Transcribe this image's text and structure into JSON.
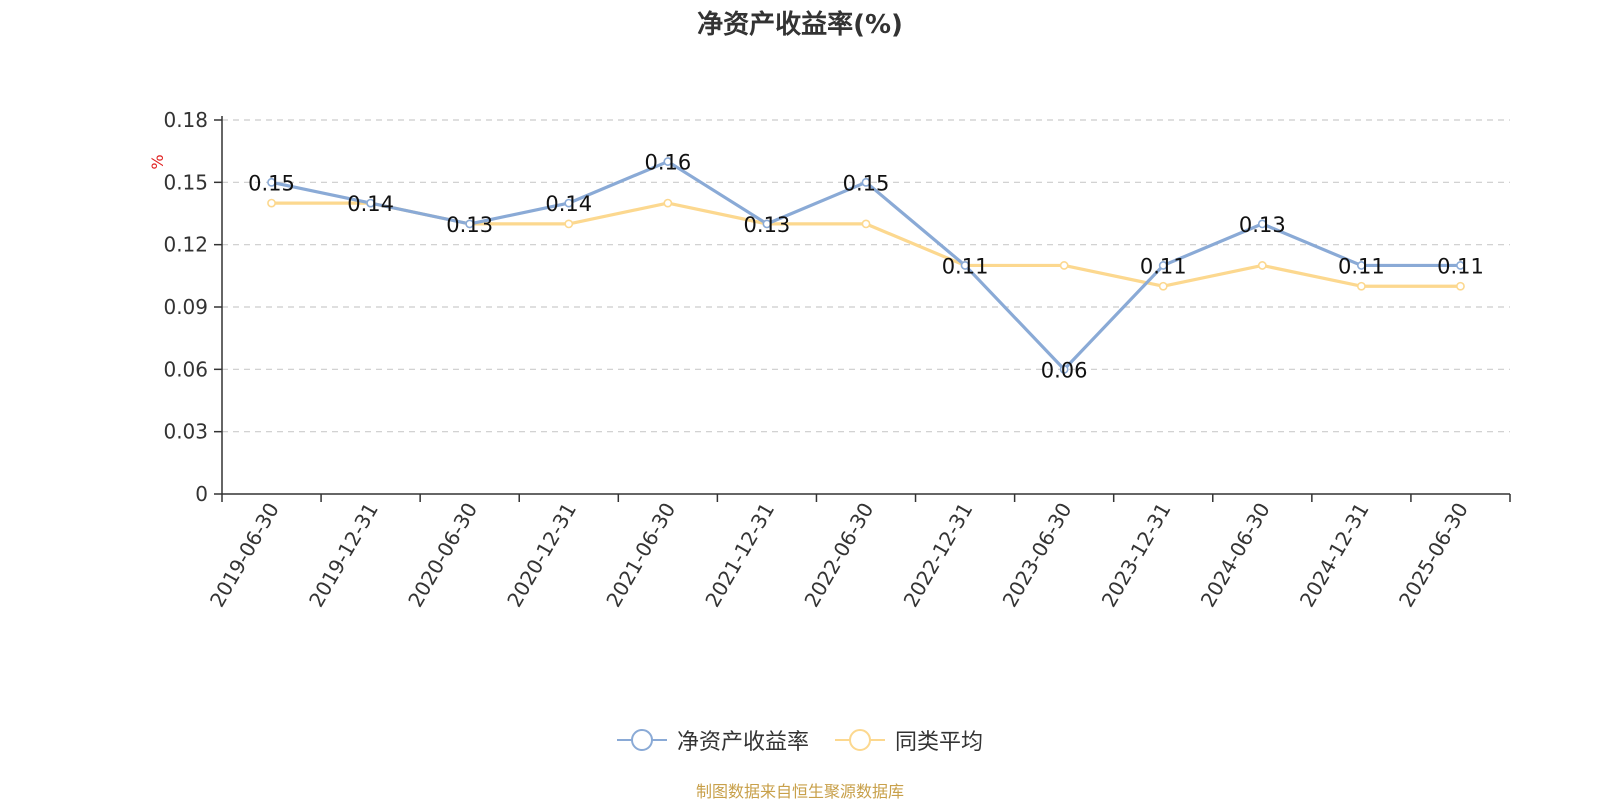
{
  "chart_data": {
    "type": "line",
    "title": "净资产收益率(%)",
    "ylabel": "%",
    "ylim": [
      0,
      0.18
    ],
    "yticks": [
      "0",
      "0.03",
      "0.06",
      "0.09",
      "0.12",
      "0.15",
      "0.18"
    ],
    "categories": [
      "2019-06-30",
      "2019-12-31",
      "2020-06-30",
      "2020-12-31",
      "2021-06-30",
      "2021-12-31",
      "2022-06-30",
      "2022-12-31",
      "2023-06-30",
      "2023-12-31",
      "2024-06-30",
      "2024-12-31",
      "2025-06-30"
    ],
    "series": [
      {
        "name": "净资产收益率",
        "color": "#8aaad6",
        "values": [
          0.15,
          0.14,
          0.13,
          0.14,
          0.16,
          0.13,
          0.15,
          0.11,
          0.06,
          0.11,
          0.13,
          0.11,
          0.11
        ],
        "labels": [
          "0.15",
          "0.14",
          "0.13",
          "0.14",
          "0.16",
          "0.13",
          "0.15",
          "0.11",
          "0.06",
          "0.11",
          "0.13",
          "0.11",
          "0.11"
        ]
      },
      {
        "name": "同类平均",
        "color": "#fcd88f",
        "values": [
          0.14,
          0.14,
          0.13,
          0.13,
          0.14,
          0.13,
          0.13,
          0.11,
          0.11,
          0.1,
          0.11,
          0.1,
          0.1
        ]
      }
    ],
    "grid": true,
    "legend_position": "bottom-center"
  },
  "source_text": "制图数据来自恒生聚源数据库"
}
